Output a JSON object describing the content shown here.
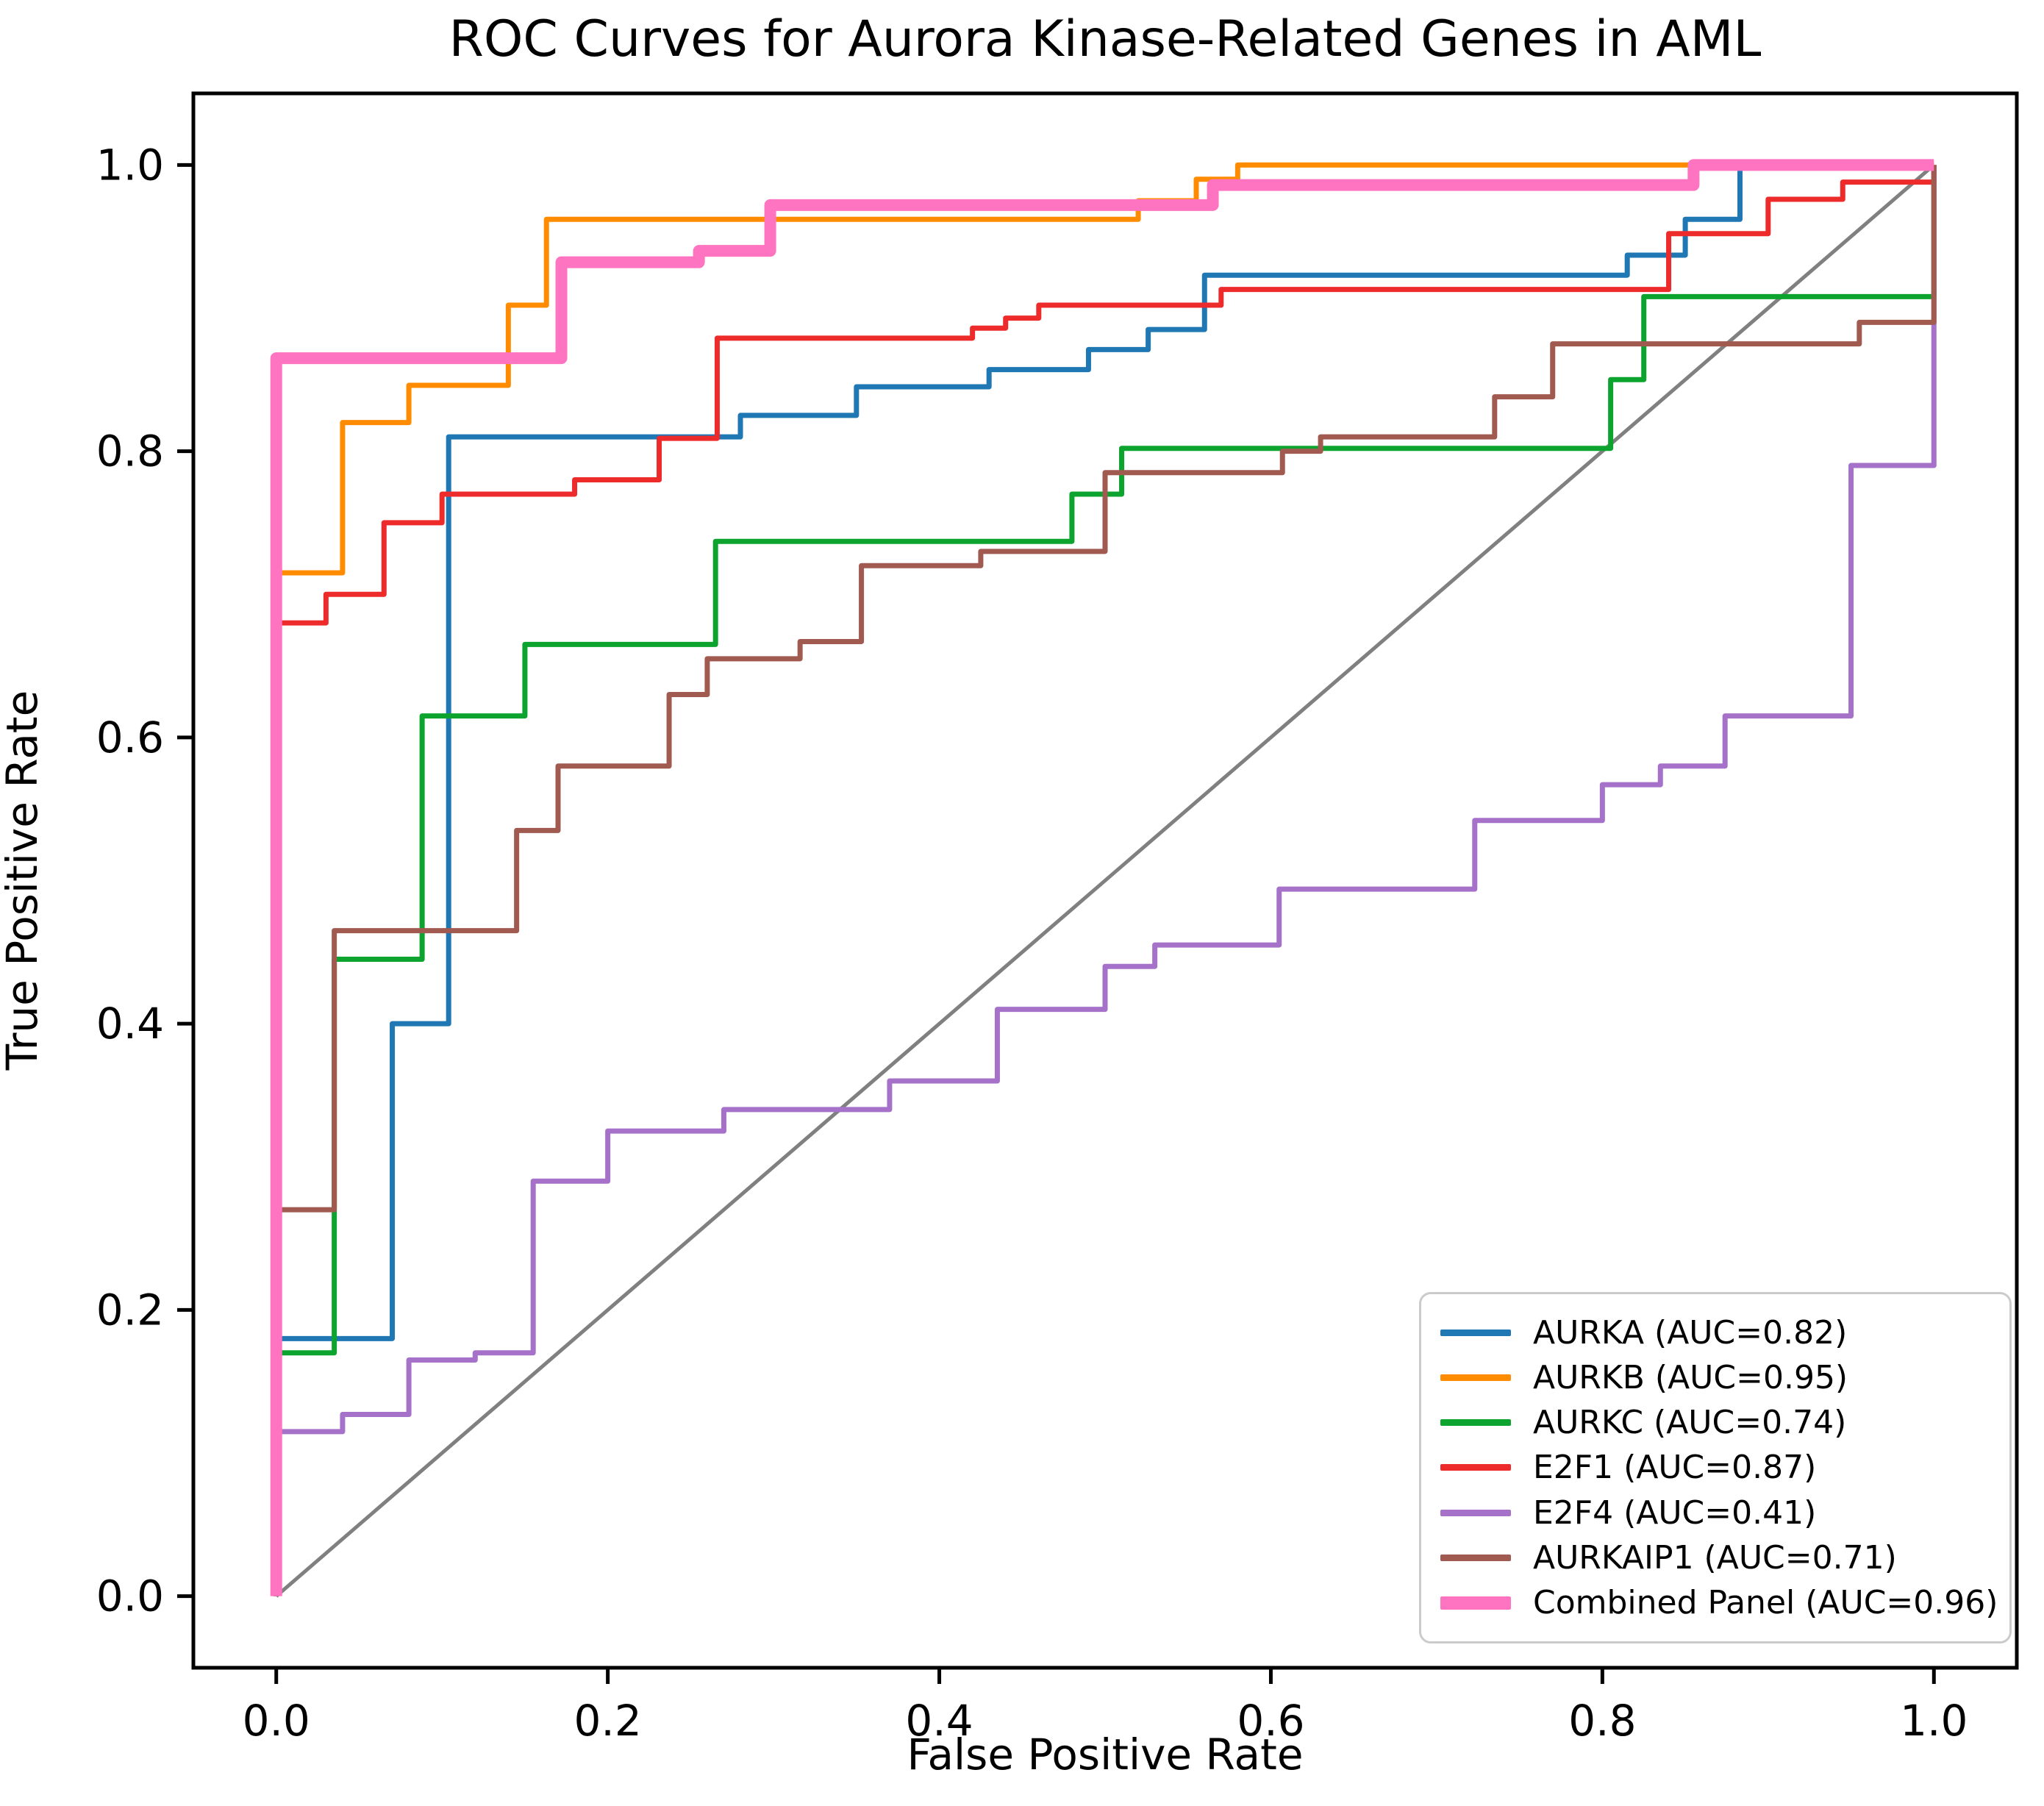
{
  "title": "ROC Curves for Aurora Kinase-Related Genes in AML",
  "x_axis": {
    "label": "False Positive Rate",
    "tick_values": [
      0.0,
      0.2,
      0.4,
      0.6,
      0.8,
      1.0
    ],
    "tick_labels": [
      "0.0",
      "0.2",
      "0.4",
      "0.6",
      "0.8",
      "1.0"
    ]
  },
  "y_axis": {
    "label": "True Positive Rate",
    "tick_values": [
      0.0,
      0.2,
      0.4,
      0.6,
      0.8,
      1.0
    ],
    "tick_labels": [
      "0.0",
      "0.2",
      "0.4",
      "0.6",
      "0.8",
      "1.0"
    ]
  },
  "chart_data": {
    "type": "line",
    "subtype": "roc-step-curves",
    "title": "ROC Curves for Aurora Kinase-Related Genes in AML",
    "xlabel": "False Positive Rate",
    "ylabel": "True Positive Rate",
    "xlim": [
      -0.05,
      1.05
    ],
    "ylim": [
      -0.05,
      1.05
    ],
    "grid": false,
    "legend_position": "lower right",
    "axis_color": "#000000",
    "diagonal": {
      "name": "chance-line",
      "color": "#808080",
      "line_width": 5,
      "points": [
        [
          0,
          0
        ],
        [
          1,
          1
        ]
      ]
    },
    "series": [
      {
        "name": "AURKA",
        "auc": 0.82,
        "label": "AURKA (AUC=0.82)",
        "color": "#1f77b4",
        "line_width": 7,
        "points": [
          [
            0,
            0.18
          ],
          [
            0.07,
            0.4
          ],
          [
            0.104,
            0.81
          ],
          [
            0.28,
            0.825
          ],
          [
            0.35,
            0.845
          ],
          [
            0.43,
            0.857
          ],
          [
            0.49,
            0.871
          ],
          [
            0.526,
            0.885
          ],
          [
            0.56,
            0.923
          ],
          [
            0.815,
            0.937
          ],
          [
            0.85,
            0.962
          ],
          [
            0.883,
            1.0
          ],
          [
            1,
            1
          ]
        ]
      },
      {
        "name": "AURKB",
        "auc": 0.95,
        "label": "AURKB (AUC=0.95)",
        "color": "#ff8c00",
        "line_width": 7,
        "points": [
          [
            0,
            0.715
          ],
          [
            0.04,
            0.82
          ],
          [
            0.08,
            0.846
          ],
          [
            0.14,
            0.902
          ],
          [
            0.163,
            0.962
          ],
          [
            0.52,
            0.975
          ],
          [
            0.555,
            0.99
          ],
          [
            0.58,
            1.0
          ],
          [
            1,
            1
          ]
        ]
      },
      {
        "name": "AURKC",
        "auc": 0.74,
        "label": "AURKC (AUC=0.74)",
        "color": "#0ca32e",
        "line_width": 7,
        "points": [
          [
            0,
            0.17
          ],
          [
            0.035,
            0.445
          ],
          [
            0.088,
            0.615
          ],
          [
            0.15,
            0.665
          ],
          [
            0.265,
            0.737
          ],
          [
            0.48,
            0.77
          ],
          [
            0.51,
            0.802
          ],
          [
            0.805,
            0.85
          ],
          [
            0.825,
            0.908
          ],
          [
            1,
            1
          ]
        ]
      },
      {
        "name": "E2F1",
        "auc": 0.87,
        "label": "E2F1 (AUC=0.87)",
        "color": "#ee2b2b",
        "line_width": 7,
        "points": [
          [
            0,
            0.68
          ],
          [
            0.03,
            0.7
          ],
          [
            0.065,
            0.75
          ],
          [
            0.1,
            0.77
          ],
          [
            0.18,
            0.78
          ],
          [
            0.231,
            0.809
          ],
          [
            0.266,
            0.879
          ],
          [
            0.42,
            0.886
          ],
          [
            0.44,
            0.893
          ],
          [
            0.46,
            0.902
          ],
          [
            0.57,
            0.913
          ],
          [
            0.84,
            0.952
          ],
          [
            0.9,
            0.976
          ],
          [
            0.945,
            0.988
          ],
          [
            1,
            1
          ]
        ]
      },
      {
        "name": "E2F4",
        "auc": 0.41,
        "label": "E2F4 (AUC=0.41)",
        "color": "#a672c9",
        "line_width": 7,
        "points": [
          [
            0,
            0.115
          ],
          [
            0.04,
            0.127
          ],
          [
            0.08,
            0.165
          ],
          [
            0.12,
            0.17
          ],
          [
            0.155,
            0.29
          ],
          [
            0.2,
            0.325
          ],
          [
            0.27,
            0.34
          ],
          [
            0.37,
            0.36
          ],
          [
            0.435,
            0.41
          ],
          [
            0.5,
            0.44
          ],
          [
            0.53,
            0.455
          ],
          [
            0.605,
            0.494
          ],
          [
            0.723,
            0.542
          ],
          [
            0.8,
            0.567
          ],
          [
            0.835,
            0.58
          ],
          [
            0.874,
            0.615
          ],
          [
            0.95,
            0.79
          ],
          [
            1,
            1
          ]
        ]
      },
      {
        "name": "AURKAIP1",
        "auc": 0.71,
        "label": "AURKAIP1 (AUC=0.71)",
        "color": "#a05a50",
        "line_width": 7,
        "points": [
          [
            0,
            0.27
          ],
          [
            0.035,
            0.465
          ],
          [
            0.145,
            0.535
          ],
          [
            0.17,
            0.58
          ],
          [
            0.237,
            0.63
          ],
          [
            0.26,
            0.655
          ],
          [
            0.316,
            0.667
          ],
          [
            0.353,
            0.72
          ],
          [
            0.425,
            0.73
          ],
          [
            0.5,
            0.785
          ],
          [
            0.607,
            0.8
          ],
          [
            0.63,
            0.81
          ],
          [
            0.735,
            0.838
          ],
          [
            0.77,
            0.875
          ],
          [
            0.955,
            0.89
          ],
          [
            1,
            1
          ]
        ]
      },
      {
        "name": "Combined Panel",
        "auc": 0.96,
        "label": "Combined Panel (AUC=0.96)",
        "color": "#ff74c0",
        "line_width": 16,
        "points": [
          [
            0,
            0.865
          ],
          [
            0.172,
            0.932
          ],
          [
            0.255,
            0.94
          ],
          [
            0.298,
            0.972
          ],
          [
            0.565,
            0.986
          ],
          [
            0.855,
            1.0
          ],
          [
            1,
            1
          ]
        ]
      }
    ]
  }
}
